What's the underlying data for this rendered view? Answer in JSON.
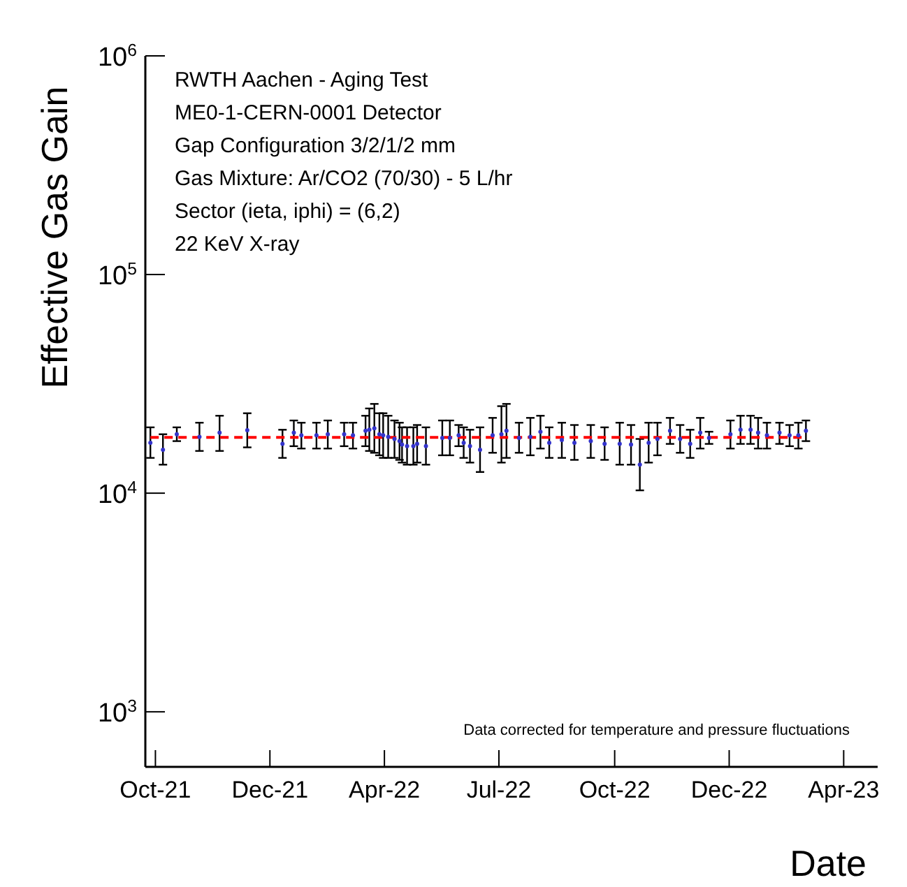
{
  "chart_data": {
    "type": "scatter",
    "annotations": [
      "RWTH Aachen - Aging Test",
      "ME0-1-CERN-0001 Detector",
      "Gap Configuration 3/2/1/2 mm",
      "Gas Mixture: Ar/CO2 (70/30) - 5 L/hr",
      "Sector (ieta, iphi) = (6,2)",
      "22 KeV X-ray",
      "Data corrected for temperature and pressure fluctuations"
    ],
    "xlabel": "Date",
    "ylabel": "Effective Gas Gain",
    "log": "y",
    "xlim": [
      "2021-09-23",
      "2023-04-28"
    ],
    "xticks": [
      {
        "value": "2021-10-01",
        "label": "Oct-21"
      },
      {
        "value": "2021-12-31",
        "label": "Dec-21"
      },
      {
        "value": "2022-04-01",
        "label": "Apr-22"
      },
      {
        "value": "2022-07-01",
        "label": "Jul-22"
      },
      {
        "value": "2022-10-01",
        "label": "Oct-22"
      },
      {
        "value": "2022-12-31",
        "label": "Dec-22"
      },
      {
        "value": "2023-04-01",
        "label": "Apr-23"
      }
    ],
    "ylim": [
      560,
      1000000
    ],
    "yticks": [
      {
        "value": 1000,
        "label": "10$^{3}$"
      },
      {
        "value": 10000,
        "label": "10$^{4}$"
      },
      {
        "value": 100000,
        "label": "10$^{5}$"
      },
      {
        "value": 1000000,
        "label": "10$^{6}$"
      }
    ],
    "series": [
      {
        "color": "#3333cc",
        "marker": "circle",
        "x": [
          "2021-09-27",
          "2021-10-07",
          "2021-10-18",
          "2021-11-05",
          "2021-11-21",
          "2021-12-13",
          "2022-01-10",
          "2022-01-19",
          "2022-01-25",
          "2022-02-06",
          "2022-02-15",
          "2022-02-28",
          "2022-03-07",
          "2022-03-17",
          "2022-03-20",
          "2022-03-24",
          "2022-03-28",
          "2022-03-31",
          "2022-04-04",
          "2022-04-09",
          "2022-04-13",
          "2022-04-15",
          "2022-04-19",
          "2022-04-24",
          "2022-04-27",
          "2022-05-04",
          "2022-05-17",
          "2022-05-23",
          "2022-05-30",
          "2022-06-03",
          "2022-06-08",
          "2022-06-16",
          "2022-06-26",
          "2022-07-03",
          "2022-07-07",
          "2022-07-17",
          "2022-07-26",
          "2022-08-03",
          "2022-08-10",
          "2022-08-20",
          "2022-08-30",
          "2022-09-12",
          "2022-09-23",
          "2022-10-05",
          "2022-10-14",
          "2022-10-21",
          "2022-10-28",
          "2022-11-04",
          "2022-11-14",
          "2022-11-22",
          "2022-11-30",
          "2022-12-08",
          "2022-12-15",
          "2023-01-01",
          "2023-01-09",
          "2023-01-17",
          "2023-01-23",
          "2023-01-30",
          "2023-02-09",
          "2023-02-17",
          "2023-02-24",
          "2023-03-02"
        ],
        "values": [
          17000,
          15800,
          18600,
          18100,
          18900,
          19400,
          16800,
          18900,
          18400,
          18400,
          18600,
          18600,
          18400,
          19300,
          19500,
          19800,
          18600,
          18400,
          18100,
          17700,
          17300,
          16700,
          16400,
          16400,
          16800,
          16400,
          17900,
          17900,
          18400,
          17000,
          16400,
          15800,
          18400,
          18600,
          19300,
          17900,
          18100,
          19100,
          17000,
          17500,
          17000,
          17300,
          16800,
          16800,
          16700,
          13500,
          17000,
          17700,
          19300,
          17700,
          16800,
          18900,
          17900,
          18600,
          19500,
          19500,
          18900,
          18400,
          18900,
          18400,
          18400,
          19300
        ],
        "errors": [
          [
            14500,
            20000
          ],
          [
            13500,
            18600
          ],
          [
            17300,
            20000
          ],
          [
            15600,
            21000
          ],
          [
            15600,
            22600
          ],
          [
            16200,
            23200
          ],
          [
            14500,
            19500
          ],
          [
            16400,
            21500
          ],
          [
            16000,
            21000
          ],
          [
            16000,
            21000
          ],
          [
            16000,
            21500
          ],
          [
            16400,
            21000
          ],
          [
            16000,
            21000
          ],
          [
            16400,
            22600
          ],
          [
            15600,
            24400
          ],
          [
            15300,
            25600
          ],
          [
            14900,
            23200
          ],
          [
            14500,
            23200
          ],
          [
            14500,
            22600
          ],
          [
            14500,
            21500
          ],
          [
            14200,
            21000
          ],
          [
            13800,
            20000
          ],
          [
            13500,
            20000
          ],
          [
            13500,
            20000
          ],
          [
            13800,
            20500
          ],
          [
            13500,
            20000
          ],
          [
            14900,
            21500
          ],
          [
            14900,
            21500
          ],
          [
            16400,
            20500
          ],
          [
            14500,
            20000
          ],
          [
            13800,
            19500
          ],
          [
            12500,
            20000
          ],
          [
            15300,
            22100
          ],
          [
            13800,
            25000
          ],
          [
            14500,
            25600
          ],
          [
            15300,
            21000
          ],
          [
            14900,
            22100
          ],
          [
            16000,
            22600
          ],
          [
            14500,
            20000
          ],
          [
            14500,
            21000
          ],
          [
            14200,
            20500
          ],
          [
            14500,
            20500
          ],
          [
            14200,
            20000
          ],
          [
            13500,
            21000
          ],
          [
            13500,
            20500
          ],
          [
            10300,
            17700
          ],
          [
            13800,
            21000
          ],
          [
            14900,
            21000
          ],
          [
            16800,
            22100
          ],
          [
            15300,
            20500
          ],
          [
            14500,
            19500
          ],
          [
            16000,
            22100
          ],
          [
            16800,
            19100
          ],
          [
            16000,
            21500
          ],
          [
            16800,
            22600
          ],
          [
            16800,
            22600
          ],
          [
            16000,
            22100
          ],
          [
            16000,
            21000
          ],
          [
            16800,
            21000
          ],
          [
            16400,
            20500
          ],
          [
            16000,
            21000
          ],
          [
            17300,
            21500
          ]
        ]
      },
      {
        "type": "line",
        "color": "#ff0000",
        "line_style": "dashed",
        "marker": "none",
        "x": [
          "2021-09-27",
          "2023-03-02"
        ],
        "values": [
          18000,
          18000
        ]
      }
    ]
  }
}
